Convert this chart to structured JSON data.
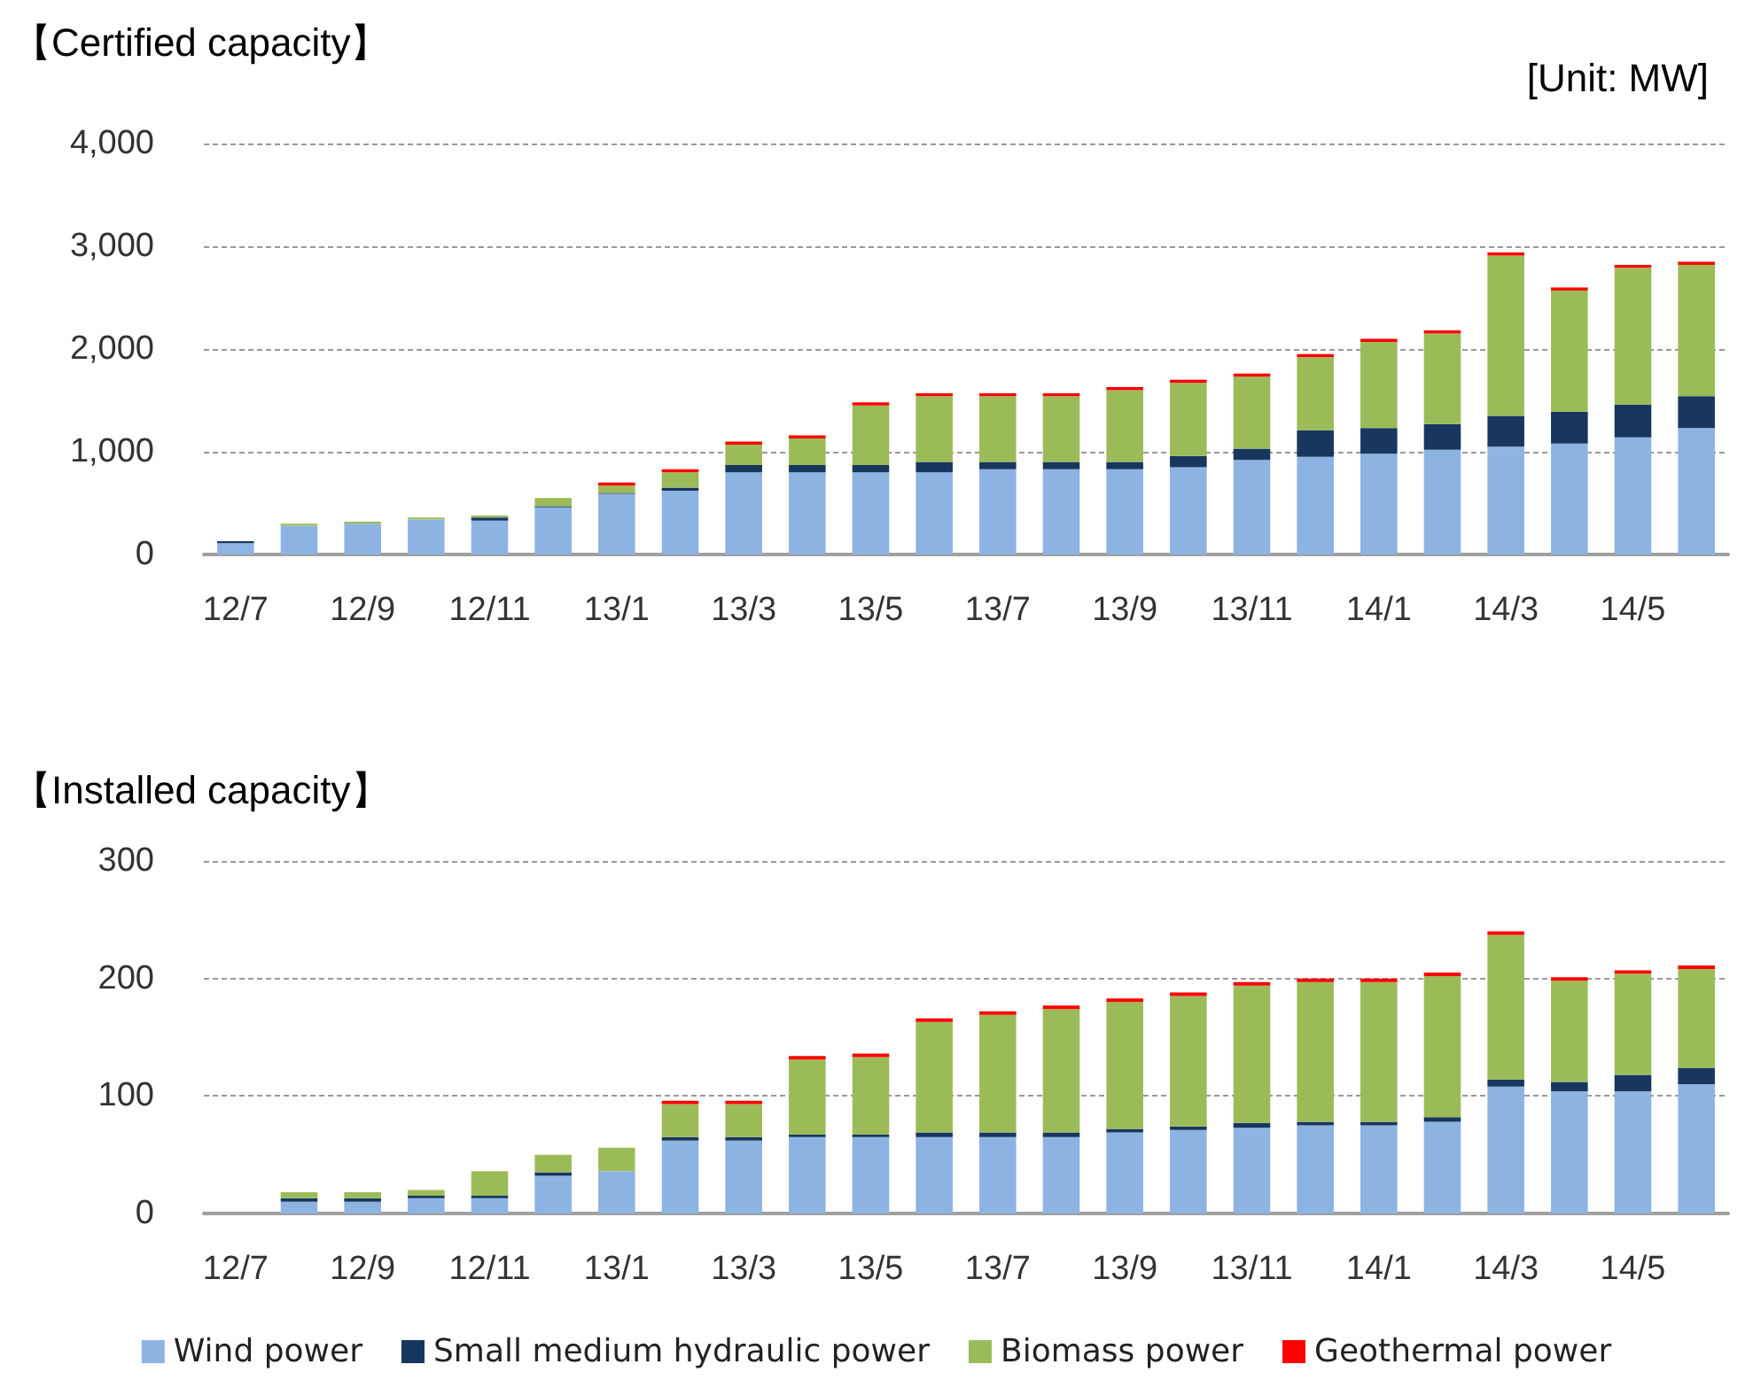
{
  "chart_data": [
    {
      "type": "bar",
      "title": "【Certified capacity】",
      "annotations": [
        "[Unit: MW]"
      ],
      "stacked": true,
      "grid": "y",
      "legend": false,
      "categories": [
        "12/7",
        null,
        "12/9",
        null,
        "12/11",
        null,
        "13/1",
        null,
        "13/3",
        null,
        "13/5",
        null,
        "13/7",
        null,
        "13/9",
        null,
        "13/11",
        null,
        "14/1",
        null,
        "14/3",
        null,
        "14/5",
        null
      ],
      "ylim": [
        0,
        4000
      ],
      "yticks": [
        0,
        {
          "value": 1000,
          "label": "1,000"
        },
        {
          "value": 2000,
          "label": "2,000"
        },
        {
          "value": 3000,
          "label": "3,000"
        },
        {
          "value": 4000,
          "label": "4,000"
        }
      ],
      "series": [
        {
          "color": "#8db3e2",
          "values": [
            110,
            280,
            300,
            340,
            330,
            460,
            590,
            620,
            800,
            800,
            800,
            800,
            830,
            830,
            830,
            850,
            920,
            950,
            980,
            1020,
            1050,
            1080,
            1140,
            1230
          ]
        },
        {
          "color": "#17375e",
          "values": [
            20,
            0,
            0,
            0,
            30,
            10,
            10,
            30,
            70,
            70,
            70,
            100,
            70,
            70,
            70,
            110,
            110,
            260,
            250,
            250,
            300,
            310,
            320,
            310
          ]
        },
        {
          "color": "#9bbb59",
          "values": [
            0,
            20,
            20,
            20,
            20,
            80,
            70,
            150,
            200,
            260,
            580,
            640,
            640,
            640,
            700,
            710,
            700,
            710,
            840,
            880,
            1560,
            1180,
            1330,
            1280
          ]
        },
        {
          "color": "#ff0000",
          "values": [
            0,
            0,
            0,
            0,
            0,
            0,
            30,
            30,
            30,
            30,
            30,
            30,
            30,
            30,
            30,
            30,
            30,
            30,
            30,
            30,
            30,
            30,
            30,
            30
          ]
        }
      ]
    },
    {
      "type": "bar",
      "title": "【Installed capacity】",
      "stacked": true,
      "grid": "y",
      "legend": "bottom",
      "categories": [
        "12/7",
        null,
        "12/9",
        null,
        "12/11",
        null,
        "13/1",
        null,
        "13/3",
        null,
        "13/5",
        null,
        "13/7",
        null,
        "13/9",
        null,
        "13/11",
        null,
        "14/1",
        null,
        "14/3",
        null,
        "14/5",
        null
      ],
      "ylim": [
        0,
        300
      ],
      "yticks": [
        0,
        100,
        200,
        300
      ],
      "series": [
        {
          "name": "Wind power",
          "color": "#8db3e2",
          "values": [
            null,
            10,
            10,
            13,
            13,
            32,
            36,
            62,
            62,
            65,
            65,
            65,
            65,
            65,
            69,
            71,
            73,
            75,
            75,
            78,
            108,
            104,
            104,
            110
          ]
        },
        {
          "name": "Small medium hydraulic power",
          "color": "#17375e",
          "values": [
            null,
            3,
            3,
            2,
            2,
            3,
            0,
            3,
            3,
            2,
            2,
            4,
            4,
            4,
            3,
            3,
            4,
            3,
            3,
            4,
            6,
            8,
            14,
            14
          ]
        },
        {
          "name": "Biomass power",
          "color": "#9bbb59",
          "values": [
            null,
            5,
            5,
            5,
            21,
            15,
            20,
            28,
            28,
            64,
            66,
            94,
            100,
            105,
            108,
            111,
            117,
            119,
            119,
            120,
            123,
            86,
            86,
            84
          ]
        },
        {
          "name": "Geothermal power",
          "color": "#ff0000",
          "values": [
            null,
            0,
            0,
            0,
            0,
            0,
            0,
            3,
            3,
            3,
            3,
            3,
            3,
            3,
            3,
            3,
            3,
            3,
            3,
            3,
            3,
            3,
            3,
            3
          ]
        }
      ]
    }
  ]
}
